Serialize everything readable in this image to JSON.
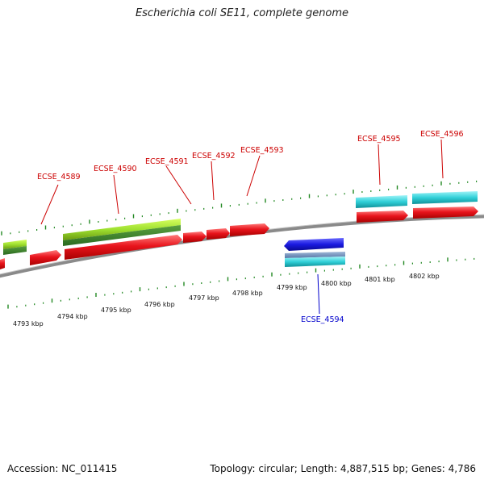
{
  "title": "Escherichia coli SE11, complete genome",
  "footer": {
    "accession": "Accession: NC_011415",
    "summary": "Topology: circular; Length: 4,887,515 bp; Genes: 4,786"
  },
  "colors": {
    "cds_forward": "#e8141c",
    "cds_green": "#6ab820",
    "cds_cyan": "#20c0c8",
    "cds_blue": "#1a1ae0",
    "label_forward": "#cc0000",
    "label_reverse": "#0000cc",
    "tick": "#228822",
    "backbone": "#888888"
  },
  "kbp_labels": [
    "4793 kbp",
    "4794 kbp",
    "4795 kbp",
    "4796 kbp",
    "4797 kbp",
    "4798 kbp",
    "4799 kbp",
    "4800 kbp",
    "4801 kbp",
    "4802 kbp"
  ],
  "gene_labels": {
    "g4589": "ECSE_4589",
    "g4590": "ECSE_4590",
    "g4591": "ECSE_4591",
    "g4592": "ECSE_4592",
    "g4593": "ECSE_4593",
    "g4594": "ECSE_4594",
    "g4595": "ECSE_4595",
    "g4596": "ECSE_4596"
  }
}
